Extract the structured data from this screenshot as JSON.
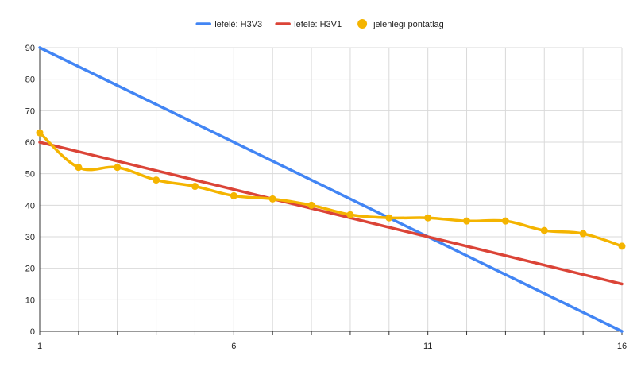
{
  "chart_data": {
    "type": "line",
    "title": "",
    "xlabel": "",
    "ylabel": "",
    "x": [
      1,
      2,
      3,
      4,
      5,
      6,
      7,
      8,
      9,
      10,
      11,
      12,
      13,
      14,
      15,
      16
    ],
    "xlim": [
      1,
      16
    ],
    "ylim": [
      0,
      90
    ],
    "x_ticks": [
      "1",
      "6",
      "11",
      "16"
    ],
    "x_tick_values": [
      1,
      6,
      11,
      16
    ],
    "y_ticks": [
      "0",
      "10",
      "20",
      "30",
      "40",
      "50",
      "60",
      "70",
      "80",
      "90"
    ],
    "y_tick_values": [
      0,
      10,
      20,
      30,
      40,
      50,
      60,
      70,
      80,
      90
    ],
    "grid": true,
    "legend_position": "top",
    "series": [
      {
        "name": "lefelé: H3V3",
        "color": "#4285F4",
        "style": "line",
        "x": [
          1,
          16
        ],
        "values": [
          90,
          0
        ]
      },
      {
        "name": "lefelé: H3V1",
        "color": "#DB4437",
        "style": "line",
        "x": [
          1,
          16
        ],
        "values": [
          60,
          15
        ]
      },
      {
        "name": "jelenlegi pontátlag",
        "color": "#F4B400",
        "style": "smooth-line-markers",
        "x": [
          1,
          2,
          3,
          4,
          5,
          6,
          7,
          8,
          9,
          10,
          11,
          12,
          13,
          14,
          15,
          16
        ],
        "values": [
          63,
          52,
          52,
          48,
          46,
          43,
          42,
          40,
          37,
          36,
          36,
          35,
          35,
          32,
          31,
          27
        ]
      }
    ]
  }
}
